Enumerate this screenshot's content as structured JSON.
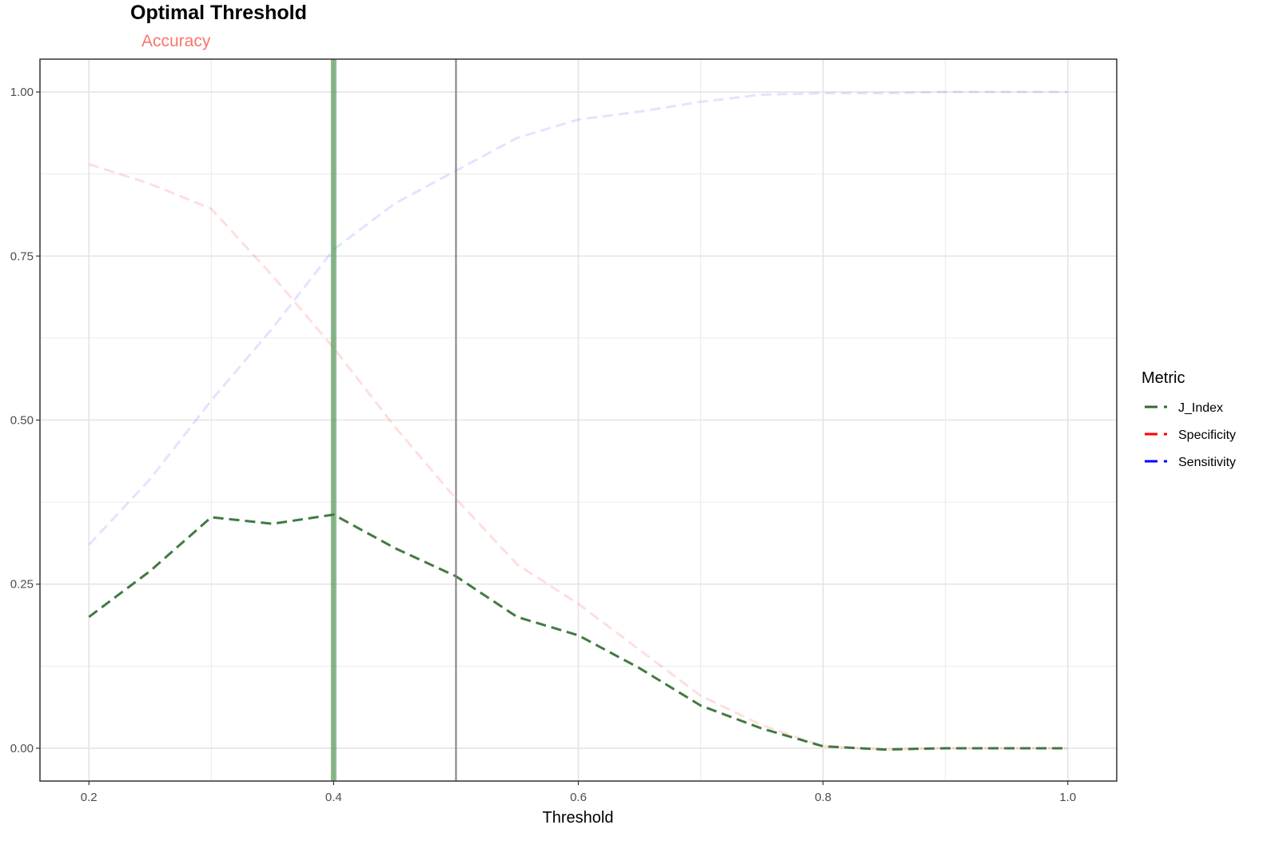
{
  "chart_data": {
    "type": "line",
    "title": "Optimal Threshold",
    "subtitle": "Accuracy",
    "subtitle_color": "#f8766d",
    "xlabel": "Threshold",
    "ylabel": "",
    "xlim": [
      0.16,
      1.04
    ],
    "ylim": [
      -0.05,
      1.05
    ],
    "x_ticks": [
      0.2,
      0.4,
      0.6,
      0.8,
      1.0
    ],
    "x_tick_labels": [
      "0.2",
      "0.4",
      "0.6",
      "0.8",
      "1.0"
    ],
    "y_ticks": [
      0.0,
      0.25,
      0.5,
      0.75,
      1.0
    ],
    "y_tick_labels": [
      "0.00",
      "0.25",
      "0.50",
      "0.75",
      "1.00"
    ],
    "grid": true,
    "legend": {
      "title": "Metric",
      "position": "right"
    },
    "x": [
      0.2,
      0.25,
      0.3,
      0.35,
      0.4,
      0.45,
      0.5,
      0.55,
      0.6,
      0.65,
      0.7,
      0.75,
      0.8,
      0.85,
      0.9,
      0.95,
      1.0
    ],
    "series": [
      {
        "name": "J_Index",
        "color": "#2e6b2e",
        "opacity": 0.9,
        "dashed": true,
        "values": [
          0.2,
          0.27,
          0.352,
          0.342,
          0.356,
          0.305,
          0.262,
          0.2,
          0.172,
          0.122,
          0.065,
          0.03,
          0.003,
          -0.002,
          0.0,
          0.0,
          0.0
        ]
      },
      {
        "name": "Specificity",
        "color": "#ff0000",
        "opacity": 0.13,
        "dashed": true,
        "values": [
          0.89,
          0.86,
          0.822,
          0.72,
          0.61,
          0.49,
          0.38,
          0.28,
          0.22,
          0.15,
          0.08,
          0.035,
          0.003,
          -0.002,
          0.0,
          0.0,
          0.0
        ]
      },
      {
        "name": "Sensitivity",
        "color": "#0000ff",
        "opacity": 0.11,
        "dashed": true,
        "values": [
          0.31,
          0.41,
          0.53,
          0.64,
          0.76,
          0.83,
          0.88,
          0.93,
          0.958,
          0.97,
          0.985,
          0.996,
          0.998,
          0.998,
          1.0,
          1.0,
          1.0
        ]
      }
    ],
    "vlines": [
      {
        "name": "optimal-threshold-line",
        "x": 0.4,
        "color": "#2e7d32",
        "opacity": 0.55,
        "width": 7
      },
      {
        "name": "default-threshold-line",
        "x": 0.5,
        "color": "#7f7f7f",
        "opacity": 1,
        "width": 2
      }
    ]
  }
}
